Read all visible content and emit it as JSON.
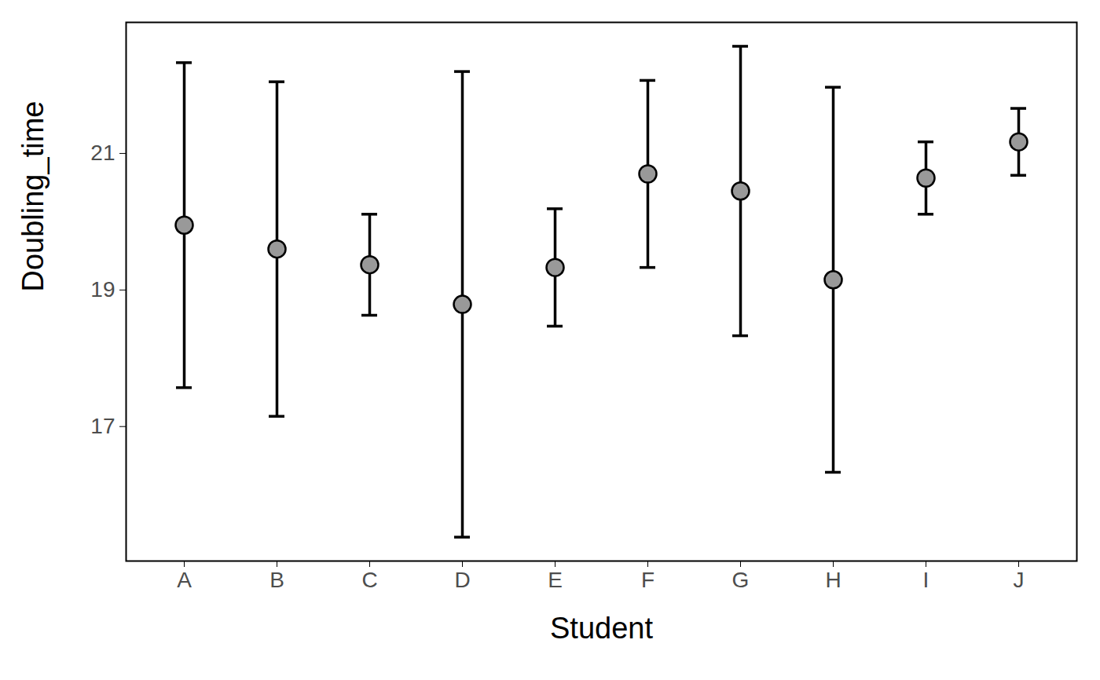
{
  "chart_data": {
    "type": "errorbar",
    "x_label": "Student",
    "y_label": "Doubling_time",
    "categories": [
      "A",
      "B",
      "C",
      "D",
      "E",
      "F",
      "G",
      "H",
      "I",
      "J"
    ],
    "values": [
      19.95,
      19.6,
      19.37,
      18.79,
      19.33,
      20.7,
      20.45,
      19.15,
      20.64,
      21.17
    ],
    "lower": [
      17.57,
      17.15,
      18.63,
      15.38,
      18.47,
      19.33,
      18.33,
      16.33,
      20.11,
      20.68
    ],
    "upper": [
      22.33,
      22.05,
      20.11,
      22.2,
      20.19,
      22.07,
      22.57,
      21.97,
      21.17,
      21.66
    ],
    "color": "#999999",
    "marker": "circle",
    "ylim": [
      15.03,
      22.92
    ],
    "yticks": [
      17,
      19,
      21
    ],
    "grid": false
  }
}
